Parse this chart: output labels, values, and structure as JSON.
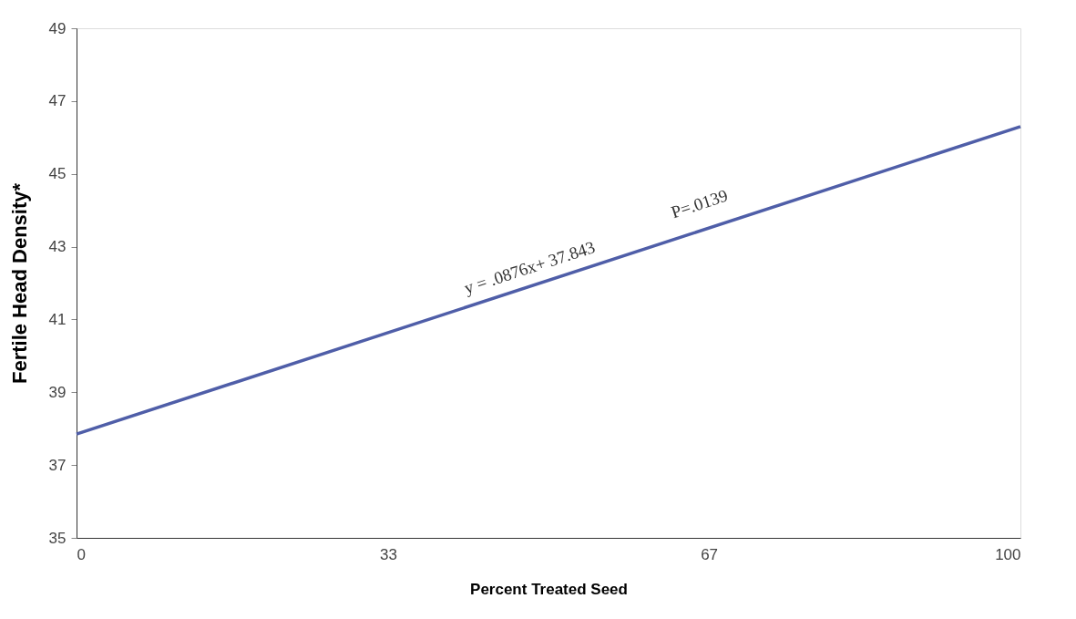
{
  "chart_data": {
    "type": "line",
    "xlabel": "Percent Treated Seed",
    "ylabel": "Fertile Head Density*",
    "x": [
      0,
      100
    ],
    "series": [
      {
        "color": "#4f5ea8",
        "values": [
          37.85,
          46.3
        ]
      }
    ],
    "xlim": [
      0,
      100
    ],
    "xticks": [
      0,
      33,
      67,
      100
    ],
    "ylim": [
      35,
      49
    ],
    "yticks": [
      35,
      37,
      39,
      41,
      43,
      45,
      47,
      49
    ],
    "annotations": [
      "y = .0876x+ 37.843",
      "P=.0139"
    ],
    "grid": false,
    "marker": "none",
    "line_style": "solid"
  }
}
